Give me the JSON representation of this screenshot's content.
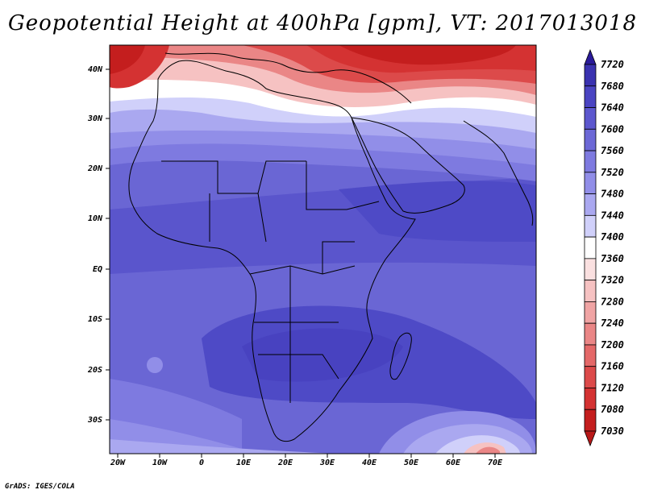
{
  "title": "Geopotential Height at 400hPa [gpm], VT: 2017013018",
  "credit": "GrADS: IGES/COLA",
  "x_ticks": [
    "20W",
    "10W",
    "0",
    "10E",
    "20E",
    "30E",
    "40E",
    "50E",
    "60E",
    "70E"
  ],
  "y_ticks": [
    "40N",
    "30N",
    "20N",
    "10N",
    "EQ",
    "10S",
    "20S",
    "30S"
  ],
  "colorbar": {
    "levels": [
      "7720",
      "7680",
      "7640",
      "7600",
      "7560",
      "7520",
      "7480",
      "7440",
      "7400",
      "7360",
      "7320",
      "7280",
      "7240",
      "7200",
      "7160",
      "7120",
      "7080",
      "7030"
    ],
    "colors": [
      "#2a1a9a",
      "#3a32b0",
      "#4a44c2",
      "#5c57ce",
      "#6c68d6",
      "#7e7ae0",
      "#918ee8",
      "#aaa8f0",
      "#d0d0fa",
      "#ffffff",
      "#fae0e0",
      "#f6c2c2",
      "#f0a4a4",
      "#ea8686",
      "#e46868",
      "#dc4a4a",
      "#d43232",
      "#c41e1e",
      "#b81818"
    ]
  }
}
